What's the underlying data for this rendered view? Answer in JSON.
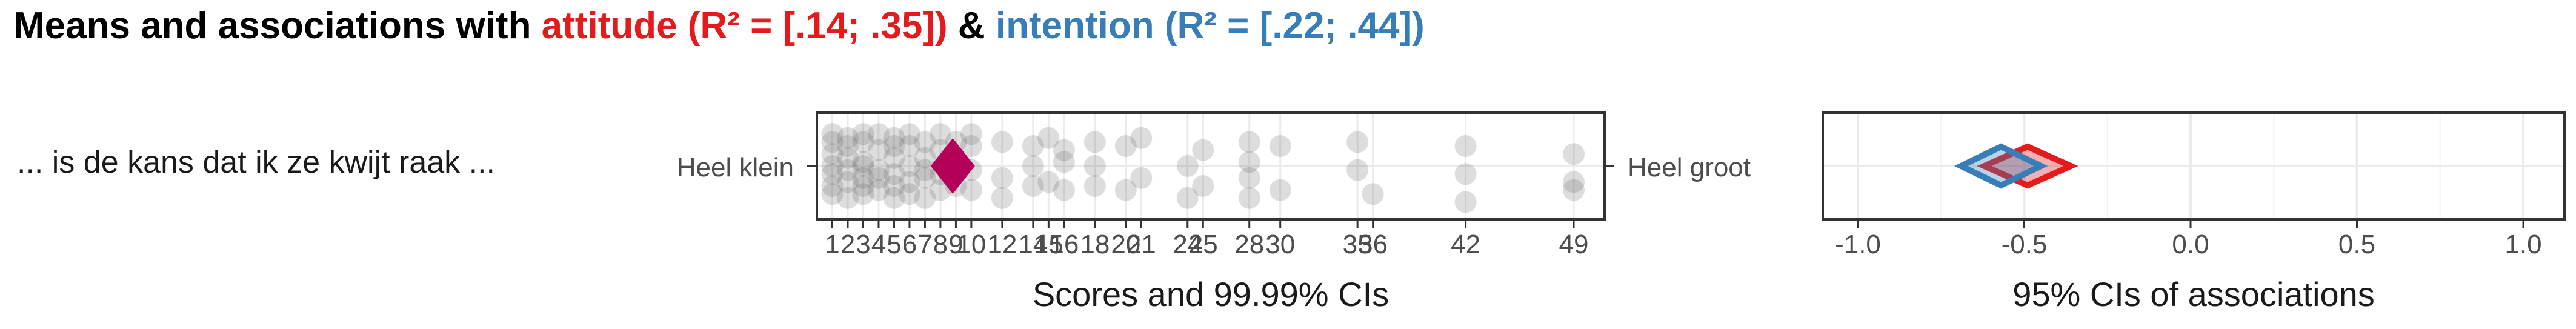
{
  "title": {
    "prefix": "Means and associations with ",
    "attitude": "attitude (R² = [.14; .35])",
    "conjunction": " & ",
    "intention": "intention (R² = [.22; .44])"
  },
  "colors": {
    "attitude": "#e41a1c",
    "intention": "#377eb8",
    "mean": "#b5005a",
    "points": "#666666",
    "panel_border": "#333333",
    "grid": "#ebebeb"
  },
  "item": {
    "label": "... is de kans dat ik ze kwijt raak ...",
    "anchor_left": "Heel klein",
    "anchor_right": "Heel groot"
  },
  "chart_data": [
    {
      "type": "scatter",
      "panel": "scores",
      "xlabel": "Scores and 99.99% CIs",
      "xlim": [
        0,
        51
      ],
      "xticks": [
        1,
        2,
        3,
        4,
        5,
        6,
        7,
        8,
        9,
        10,
        12,
        14,
        15,
        16,
        18,
        20,
        21,
        24,
        25,
        28,
        30,
        35,
        36,
        42,
        49
      ],
      "mean": 8.8,
      "ci": [
        8.0,
        9.6
      ],
      "points": [
        [
          1,
          -0.8
        ],
        [
          1,
          -0.3
        ],
        [
          1,
          0.2
        ],
        [
          1,
          0.7
        ],
        [
          1,
          -0.6
        ],
        [
          1,
          0.5
        ],
        [
          1,
          0.0
        ],
        [
          2,
          -0.7
        ],
        [
          2,
          0.4
        ],
        [
          2,
          -0.2
        ],
        [
          2,
          0.8
        ],
        [
          2,
          0.1
        ],
        [
          2,
          -0.5
        ],
        [
          3,
          -0.6
        ],
        [
          3,
          0.3
        ],
        [
          3,
          0.7
        ],
        [
          3,
          -0.1
        ],
        [
          3,
          -0.8
        ],
        [
          3,
          0.5
        ],
        [
          3,
          0.0
        ],
        [
          4,
          -0.4
        ],
        [
          4,
          0.6
        ],
        [
          4,
          0.1
        ],
        [
          4,
          -0.8
        ],
        [
          4,
          0.3
        ],
        [
          5,
          -0.7
        ],
        [
          5,
          0.2
        ],
        [
          5,
          0.8
        ],
        [
          5,
          -0.2
        ],
        [
          5,
          0.5
        ],
        [
          5,
          -0.5
        ],
        [
          6,
          -0.5
        ],
        [
          6,
          0.4
        ],
        [
          6,
          0.0
        ],
        [
          6,
          0.7
        ],
        [
          6,
          -0.8
        ],
        [
          7,
          -0.6
        ],
        [
          7,
          0.3
        ],
        [
          7,
          0.8
        ],
        [
          7,
          -0.2
        ],
        [
          7,
          0.1
        ],
        [
          8,
          -0.4
        ],
        [
          8,
          0.6
        ],
        [
          8,
          -0.8
        ],
        [
          8,
          0.2
        ],
        [
          9,
          -0.6
        ],
        [
          9,
          0.5
        ],
        [
          9,
          0.0
        ],
        [
          10,
          -0.5
        ],
        [
          10,
          0.6
        ],
        [
          10,
          0.1
        ],
        [
          10,
          -0.8
        ],
        [
          12,
          -0.6
        ],
        [
          12,
          0.3
        ],
        [
          12,
          0.8
        ],
        [
          14,
          -0.5
        ],
        [
          14,
          0.5
        ],
        [
          14,
          0.0
        ],
        [
          15,
          -0.7
        ],
        [
          15,
          0.4
        ],
        [
          16,
          -0.4
        ],
        [
          16,
          0.6
        ],
        [
          16,
          -0.1
        ],
        [
          18,
          -0.6
        ],
        [
          18,
          0.5
        ],
        [
          18,
          0.0
        ],
        [
          20,
          -0.5
        ],
        [
          20,
          0.6
        ],
        [
          21,
          -0.7
        ],
        [
          21,
          0.3
        ],
        [
          24,
          0.0
        ],
        [
          24,
          0.8
        ],
        [
          25,
          -0.4
        ],
        [
          25,
          0.5
        ],
        [
          28,
          -0.6
        ],
        [
          28,
          0.3
        ],
        [
          28,
          0.8
        ],
        [
          28,
          -0.1
        ],
        [
          30,
          -0.5
        ],
        [
          30,
          0.6
        ],
        [
          35,
          -0.6
        ],
        [
          35,
          0.1
        ],
        [
          36,
          0.7
        ],
        [
          42,
          -0.5
        ],
        [
          42,
          0.2
        ],
        [
          42,
          0.9
        ],
        [
          49,
          -0.3
        ],
        [
          49,
          0.6
        ],
        [
          49,
          0.4
        ]
      ]
    },
    {
      "type": "ci_diamonds",
      "panel": "associations",
      "xlabel": "95% CIs of associations",
      "xlim": [
        -1.0,
        1.0
      ],
      "xticks": [
        -1.0,
        -0.5,
        0.0,
        0.5,
        1.0
      ],
      "xtick_labels": [
        "-1.0",
        "-0.5",
        "0.0",
        "0.5",
        "1.0"
      ],
      "series": [
        {
          "name": "attitude",
          "color": "#e41a1c",
          "ci": [
            -0.62,
            -0.36
          ],
          "point": -0.49
        },
        {
          "name": "intention",
          "color": "#377eb8",
          "ci": [
            -0.69,
            -0.45
          ],
          "point": -0.57
        }
      ]
    }
  ]
}
